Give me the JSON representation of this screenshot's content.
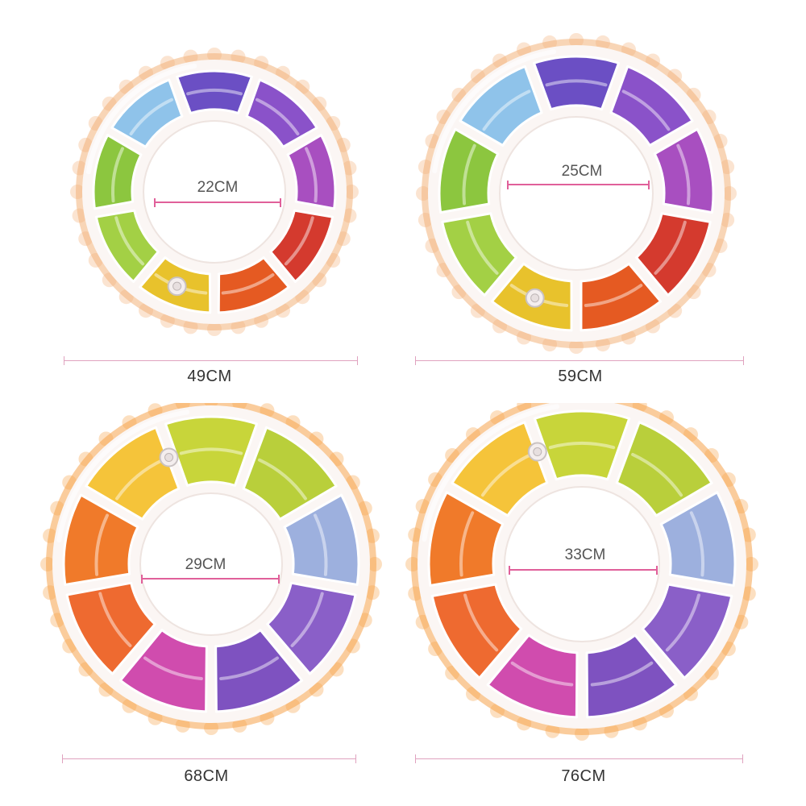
{
  "rings": [
    {
      "inner_diameter_label": "22CM",
      "outer_diameter_label": "49CM",
      "segment_colors": [
        "#6b4fc4",
        "#8a52c9",
        "#a84fc0",
        "#d43a2e",
        "#e55a22",
        "#e8c22c",
        "#a3d045",
        "#8cc63f",
        "#8fc3ea"
      ],
      "rim_color": "#f3b37a",
      "valve_icon": "valve-icon"
    },
    {
      "inner_diameter_label": "25CM",
      "outer_diameter_label": "59CM",
      "segment_colors": [
        "#6b4fc4",
        "#8a52c9",
        "#a84fc0",
        "#d43a2e",
        "#e55a22",
        "#e8c22c",
        "#a3d045",
        "#8cc63f",
        "#8fc3ea"
      ],
      "rim_color": "#f3b37a",
      "valve_icon": "valve-icon"
    },
    {
      "inner_diameter_label": "29CM",
      "outer_diameter_label": "68CM",
      "segment_colors": [
        "#c8d53a",
        "#b9cf3b",
        "#9db0de",
        "#8a5fc8",
        "#7e52c0",
        "#d04cae",
        "#ee6a30",
        "#f07a2a",
        "#f5c43a"
      ],
      "rim_color": "#f5a34a",
      "valve_icon": "valve-icon"
    },
    {
      "inner_diameter_label": "33CM",
      "outer_diameter_label": "76CM",
      "segment_colors": [
        "#c8d53a",
        "#b9cf3b",
        "#9db0de",
        "#8a5fc8",
        "#7e52c0",
        "#d04cae",
        "#ee6a30",
        "#f07a2a",
        "#f5c43a"
      ],
      "rim_color": "#f5a34a",
      "valve_icon": "valve-icon"
    }
  ]
}
